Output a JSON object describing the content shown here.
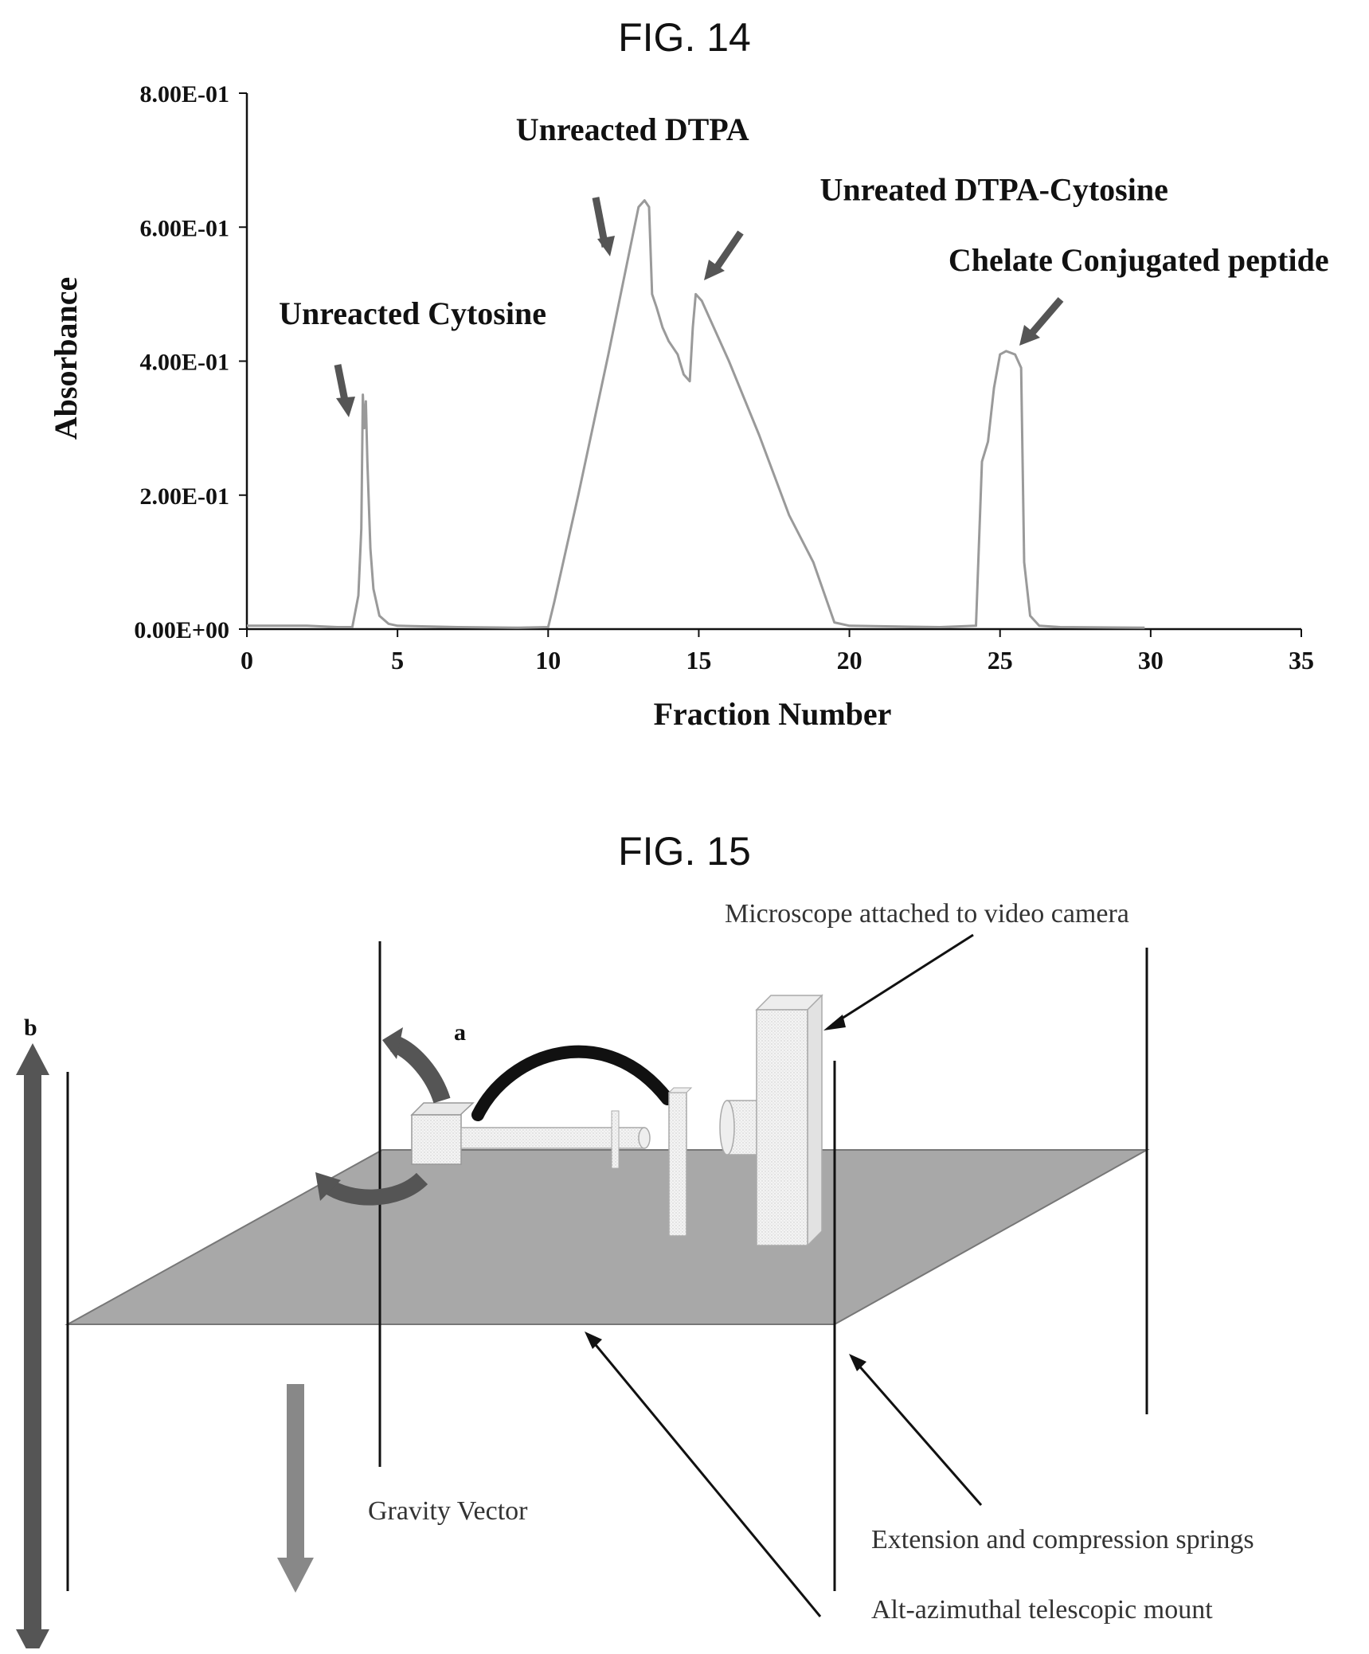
{
  "fig14": {
    "title": "FIG. 14"
  },
  "fig15": {
    "title": "FIG. 15",
    "labels": {
      "a": "a",
      "b": "b",
      "microscope": "Microscope attached to video camera",
      "gravity": "Gravity Vector",
      "springs": "Extension and compression springs",
      "mount": "Alt-azimuthal telescopic mount"
    }
  },
  "chart_data": {
    "type": "line",
    "title": "",
    "xlabel": "Fraction Number",
    "ylabel": "Absorbance",
    "xlim": [
      0,
      35
    ],
    "ylim": [
      0,
      0.8
    ],
    "x_ticks": [
      "0",
      "5",
      "10",
      "15",
      "20",
      "25",
      "30",
      "35"
    ],
    "y_ticks": [
      "0.00E+00",
      "2.00E-01",
      "4.00E-01",
      "6.00E-01",
      "8.00E-01"
    ],
    "grid": false,
    "legend": "none",
    "line_color": "#9a9a9a",
    "series": [
      {
        "x": [
          0,
          2,
          3,
          3.5,
          3.7,
          3.8,
          3.85,
          3.9,
          3.95,
          4.0,
          4.1,
          4.2,
          4.4,
          4.7,
          5,
          7,
          9,
          10,
          10.2,
          11,
          12,
          13,
          13.2,
          13.35,
          13.45,
          13.6,
          13.8,
          14.0,
          14.3,
          14.5,
          14.7,
          14.8,
          14.9,
          15.1,
          16,
          17,
          18,
          18.8,
          19.5,
          20,
          23,
          24.2,
          24.4,
          24.6,
          24.8,
          25.0,
          25.2,
          25.5,
          25.7,
          25.8,
          26.0,
          26.3,
          27,
          29.8
        ],
        "y": [
          0.005,
          0.005,
          0.003,
          0.003,
          0.05,
          0.15,
          0.35,
          0.3,
          0.34,
          0.25,
          0.12,
          0.06,
          0.02,
          0.008,
          0.005,
          0.003,
          0.002,
          0.003,
          0.04,
          0.2,
          0.41,
          0.63,
          0.64,
          0.63,
          0.5,
          0.48,
          0.45,
          0.43,
          0.41,
          0.38,
          0.37,
          0.45,
          0.5,
          0.49,
          0.4,
          0.29,
          0.17,
          0.1,
          0.01,
          0.005,
          0.003,
          0.005,
          0.25,
          0.28,
          0.36,
          0.41,
          0.415,
          0.41,
          0.39,
          0.1,
          0.02,
          0.005,
          0.003,
          0.002
        ]
      }
    ],
    "annotations": [
      {
        "text": "Unreacted DTPA",
        "x": 12.8,
        "y": 0.73
      },
      {
        "text": "Unreated DTPA-Cytosine",
        "x": 24.8,
        "y": 0.64
      },
      {
        "text": "Chelate Conjugated peptide",
        "x": 29.6,
        "y": 0.535
      },
      {
        "text": "Unreacted Cytosine",
        "x": 5.5,
        "y": 0.455
      }
    ]
  }
}
